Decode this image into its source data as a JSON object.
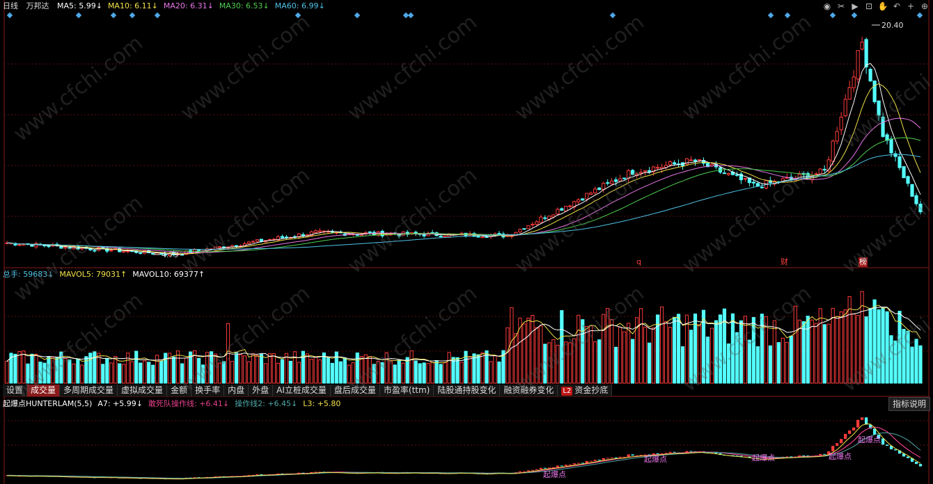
{
  "header": {
    "period": "日线",
    "stock_name": "万邦达",
    "ma": [
      {
        "label": "MA5: 5.99↓",
        "color": "#ffffff"
      },
      {
        "label": "MA10: 6.11↓",
        "color": "#f2e24a"
      },
      {
        "label": "MA20: 6.31↓",
        "color": "#e875e8"
      },
      {
        "label": "MA30: 6.53↓",
        "color": "#4fcf4f"
      },
      {
        "label": "MA60: 6.99↓",
        "color": "#4fc3e8"
      }
    ]
  },
  "toolbar": {
    "icons": [
      "eye-icon",
      "scissors-icon",
      "play-icon",
      "lock-icon",
      "hand-icon",
      "back-icon",
      "plus-icon",
      "zoom-in-icon"
    ]
  },
  "price_chart": {
    "high_label": "20.40",
    "low_label": "4.79",
    "flags": [
      {
        "text": "q",
        "color": "#ff4040"
      },
      {
        "text": "财",
        "color": "#ff4040"
      },
      {
        "text": "榜",
        "color": "#ffffff"
      }
    ]
  },
  "volume": {
    "legend": [
      {
        "label": "总手: 59683↓",
        "color": "#4fc3e8"
      },
      {
        "label": "MAVOL5: 79031↑",
        "color": "#f2e24a"
      },
      {
        "label": "MAVOL10: 69377↑",
        "color": "#ffffff"
      }
    ]
  },
  "tabs": [
    {
      "label": "设置",
      "active": false
    },
    {
      "label": "成交量",
      "active": true
    },
    {
      "label": "多周期成交量",
      "active": false
    },
    {
      "label": "虚拟成交量",
      "active": false
    },
    {
      "label": "金额",
      "active": false
    },
    {
      "label": "换手率",
      "active": false
    },
    {
      "label": "内盘",
      "active": false
    },
    {
      "label": "外盘",
      "active": false
    },
    {
      "label": "AI立桩成交量",
      "active": false
    },
    {
      "label": "盘后成交量",
      "active": false
    },
    {
      "label": "市盈率(ttm)",
      "active": false
    },
    {
      "label": "陆股通持股变化",
      "active": false
    },
    {
      "label": "融资融券变化",
      "active": false
    },
    {
      "label": "资金抄底",
      "active": false,
      "badge": "L2"
    }
  ],
  "indicator": {
    "legend": [
      {
        "label": "起爆点HUNTERLAM(5,5)",
        "color": "#ffffff"
      },
      {
        "label": "A7: +5.99↓",
        "color": "#ffffff"
      },
      {
        "label": "敢死队操作线: +6.41↓",
        "color": "#e8408a"
      },
      {
        "label": "操作线2: +6.45↓",
        "color": "#4fa8a8"
      },
      {
        "label": "L3: +5.80",
        "color": "#f2e24a"
      }
    ],
    "help_button": "指标说明",
    "markers": [
      "起爆点",
      "起爆点",
      "起爆点",
      "起爆点",
      "起爆点"
    ]
  },
  "watermark": "www.cfchi.com"
}
